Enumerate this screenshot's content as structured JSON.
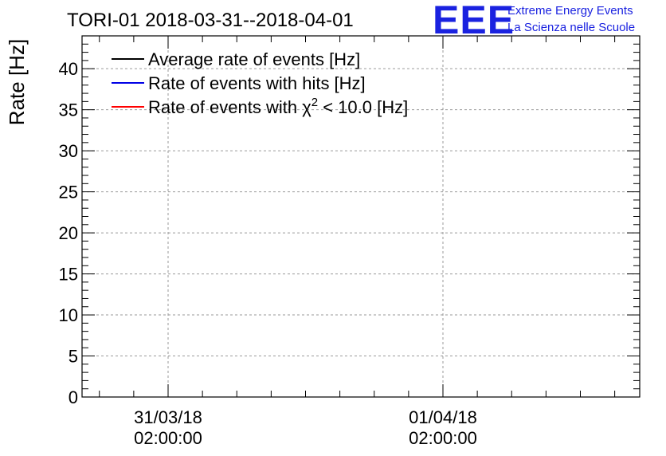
{
  "colors": {
    "average": "#000000",
    "hits": "#0000e6",
    "chi2": "#ff0000",
    "grid": "#9a9a9a",
    "logo": "#1a22e0"
  },
  "logo": {
    "letters": "EEE",
    "line1": "Extreme Energy Events",
    "line2": "La Scienza nelle Scuole"
  },
  "chart_data": {
    "type": "line",
    "title": "TORI-01 2018-03-31--2018-04-01",
    "ylabel": "Rate [Hz]",
    "xlabel": "",
    "ylim": [
      0,
      44
    ],
    "grid": true,
    "legend_position": "top-left",
    "yticks": [
      "0",
      "5",
      "10",
      "15",
      "20",
      "25",
      "30",
      "35",
      "40"
    ],
    "xticks": [
      {
        "date": "31/03/18",
        "time": "02:00:00"
      },
      {
        "date": "01/04/18",
        "time": "02:00:00"
      }
    ],
    "legend": [
      {
        "key": "average",
        "prefix": "Average rate of events [Hz]",
        "sup": "",
        "suffix": ""
      },
      {
        "key": "hits",
        "prefix": "Rate of events with hits [Hz]",
        "sup": "",
        "suffix": ""
      },
      {
        "key": "chi2",
        "prefix": "Rate of events with χ",
        "sup": "2",
        "suffix": " < 10.0 [Hz]"
      }
    ]
  }
}
